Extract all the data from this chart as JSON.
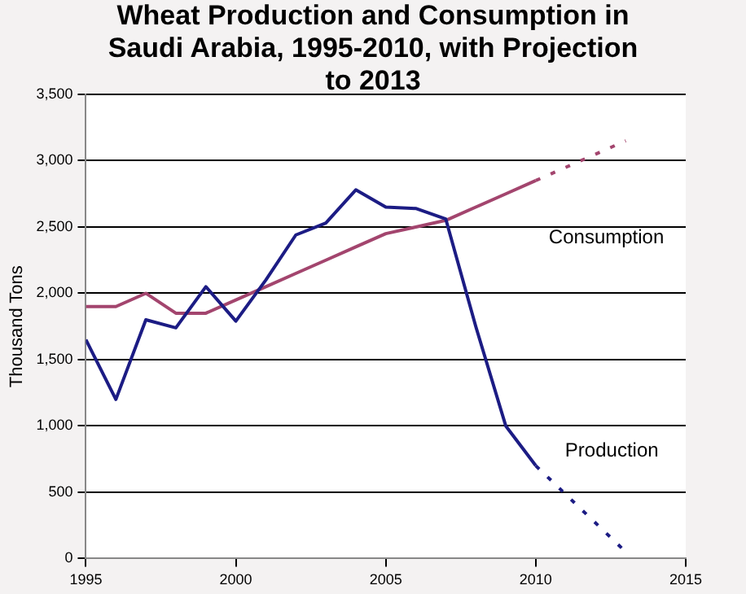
{
  "chart_data": {
    "type": "line",
    "title": "Wheat Production and Consumption in Saudi Arabia, 1995-2010, with Projection to 2013",
    "ylabel": "Thousand Tons",
    "xlim": [
      1995,
      2015
    ],
    "xticks": [
      1995,
      2000,
      2005,
      2010,
      2015
    ],
    "ylim": [
      0,
      3500
    ],
    "yticks": [
      {
        "value": 0,
        "label": "0"
      },
      {
        "value": 500,
        "label": "500"
      },
      {
        "value": 1000,
        "label": "1,000"
      },
      {
        "value": 1500,
        "label": "1,500"
      },
      {
        "value": 2000,
        "label": "2,000"
      },
      {
        "value": 2500,
        "label": "2,500"
      },
      {
        "value": 3000,
        "label": "3,000"
      },
      {
        "value": 3500,
        "label": "3,500"
      }
    ],
    "grid": "y",
    "legend": false,
    "marker": "none",
    "series": [
      {
        "name": "Production",
        "color": "#1c1c84",
        "line_style": "solid",
        "x": [
          1995,
          1996,
          1997,
          1998,
          1999,
          2000,
          2001,
          2002,
          2003,
          2004,
          2005,
          2006,
          2007,
          2008,
          2009,
          2010
        ],
        "values": [
          1650,
          1200,
          1800,
          1740,
          2050,
          1790,
          2100,
          2440,
          2530,
          2780,
          2650,
          2640,
          2560,
          1750,
          1000,
          700
        ]
      },
      {
        "color": "#1c1c84",
        "line_style": "dotted",
        "x": [
          2010,
          2013
        ],
        "values": [
          700,
          50
        ]
      },
      {
        "name": "Consumption",
        "color": "#a3456e",
        "line_style": "solid",
        "x": [
          1995,
          1996,
          1997,
          1998,
          1999,
          2000,
          2001,
          2002,
          2003,
          2004,
          2005,
          2006,
          2007,
          2008,
          2009,
          2010
        ],
        "values": [
          1900,
          1900,
          2000,
          1850,
          1850,
          1950,
          2050,
          2150,
          2250,
          2350,
          2450,
          2500,
          2550,
          2650,
          2750,
          2850
        ]
      },
      {
        "color": "#a3456e",
        "line_style": "dotted",
        "x": [
          2010,
          2013
        ],
        "values": [
          2850,
          3150
        ]
      }
    ]
  }
}
